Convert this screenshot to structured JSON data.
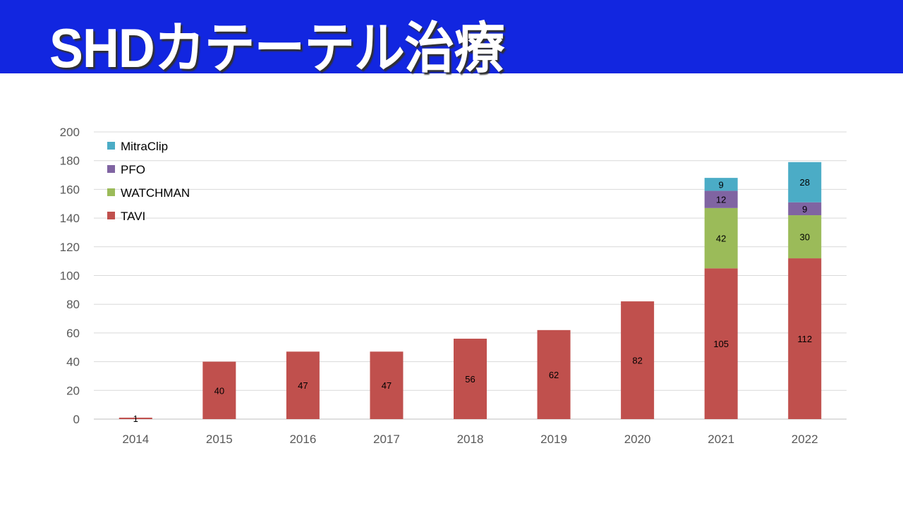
{
  "header": {
    "title": "SHDカテーテル治療"
  },
  "chart_data": {
    "type": "bar",
    "stacked": true,
    "title": "",
    "xlabel": "",
    "ylabel": "",
    "ylim": [
      0,
      200
    ],
    "yticks": [
      0,
      20,
      40,
      60,
      80,
      100,
      120,
      140,
      160,
      180,
      200
    ],
    "grid": true,
    "legend_position": "top-left",
    "categories": [
      "2014",
      "2015",
      "2016",
      "2017",
      "2018",
      "2019",
      "2020",
      "2021",
      "2022"
    ],
    "series": [
      {
        "name": "TAVI",
        "color": "#c0504d",
        "values": [
          1,
          40,
          47,
          47,
          56,
          62,
          82,
          105,
          112
        ]
      },
      {
        "name": "WATCHMAN",
        "color": "#9bbb59",
        "values": [
          null,
          null,
          null,
          null,
          null,
          null,
          null,
          42,
          30
        ]
      },
      {
        "name": "PFO",
        "color": "#8064a2",
        "values": [
          null,
          null,
          null,
          null,
          null,
          null,
          null,
          12,
          9
        ]
      },
      {
        "name": "MitraClip",
        "color": "#4bacc6",
        "values": [
          null,
          null,
          null,
          null,
          null,
          null,
          null,
          9,
          28
        ]
      }
    ]
  }
}
